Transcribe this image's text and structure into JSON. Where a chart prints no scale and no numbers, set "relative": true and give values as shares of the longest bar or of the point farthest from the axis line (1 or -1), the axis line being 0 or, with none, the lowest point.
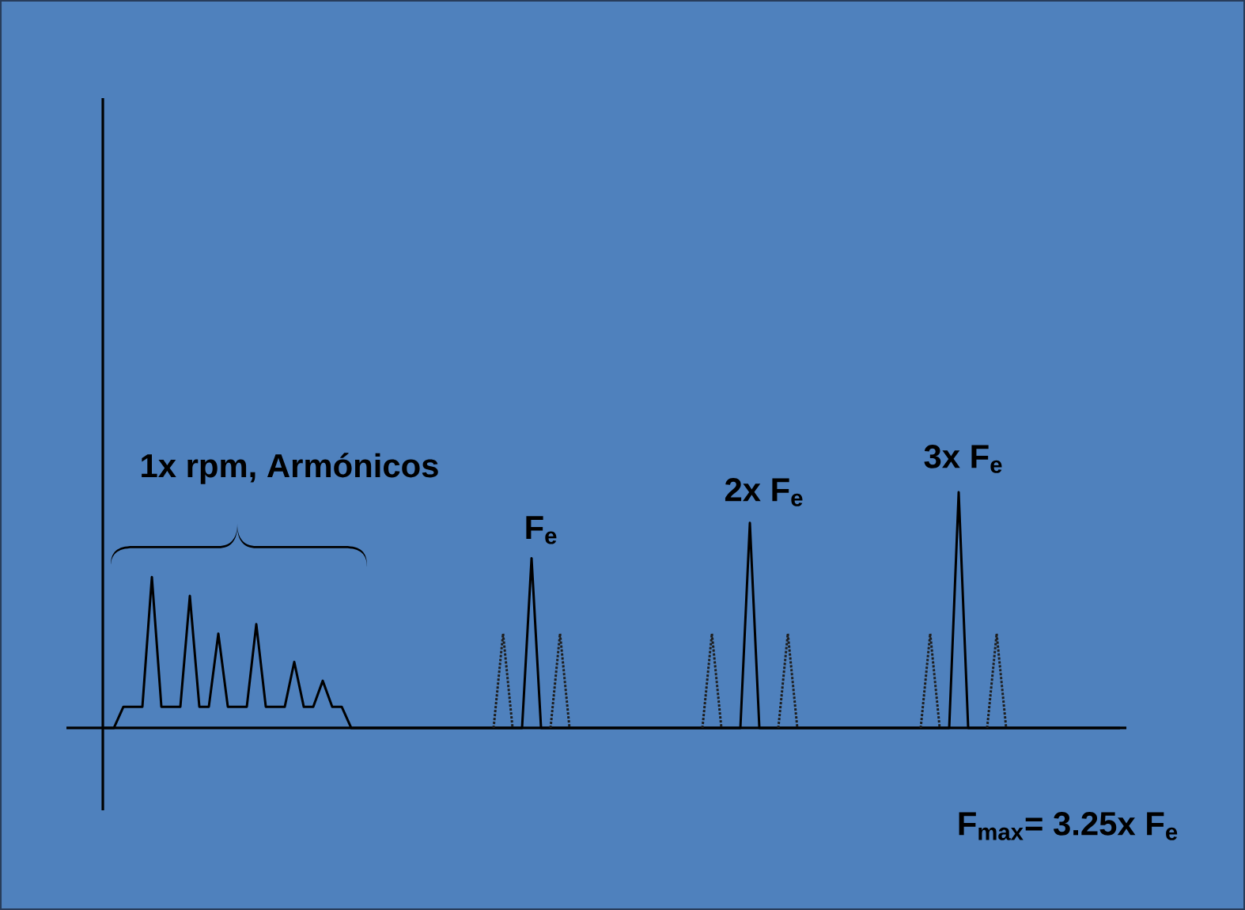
{
  "chart_data": {
    "type": "line",
    "relative": true,
    "categories": [
      null,
      null,
      null,
      null,
      null,
      null,
      null,
      null,
      null,
      null,
      null,
      null,
      null,
      null,
      null,
      null,
      null,
      null,
      null,
      null,
      null,
      null,
      null,
      null,
      null,
      null,
      null,
      null,
      null,
      null,
      null,
      null,
      null,
      null,
      null,
      null,
      null,
      null,
      null,
      null,
      null,
      null,
      null,
      null,
      null,
      null,
      null,
      null,
      null,
      null,
      null,
      null,
      null,
      null,
      null,
      null,
      null,
      null,
      null,
      null,
      null,
      null,
      null,
      null,
      null,
      null,
      null,
      null,
      null,
      null,
      null,
      null,
      null,
      null,
      null,
      null,
      null,
      null,
      null,
      null,
      null,
      null,
      null,
      null,
      null,
      null,
      null,
      null,
      null,
      null,
      null,
      null,
      null,
      null,
      null,
      null,
      null,
      null,
      null,
      null,
      null,
      null,
      null,
      null,
      null,
      null,
      null,
      null
    ],
    "series": [
      {
        "color": "#000000",
        "line_style": "solid",
        "values": [
          0,
          0,
          0.09,
          0.09,
          0.09,
          0.64,
          0.09,
          0.09,
          0.09,
          0.56,
          0.09,
          0.09,
          0.4,
          0.09,
          0.09,
          0.09,
          0.44,
          0.09,
          0.09,
          0.09,
          0.28,
          0.09,
          0.09,
          0.2,
          0.09,
          0.09,
          0,
          0,
          0,
          0,
          0,
          0,
          0,
          0,
          0,
          0,
          0,
          0,
          0,
          0,
          0,
          0,
          0,
          0,
          0,
          0.72,
          0,
          0,
          0,
          0,
          0,
          0,
          0,
          0,
          0,
          0,
          0,
          0,
          0,
          0,
          0,
          0,
          0,
          0,
          0,
          0,
          0,
          0,
          0.87,
          0,
          0,
          0,
          0,
          0,
          0,
          0,
          0,
          0,
          0,
          0,
          0,
          0,
          0,
          0,
          0,
          0,
          0,
          0,
          0,
          0,
          1,
          0,
          0,
          0,
          0,
          0,
          0,
          0,
          0,
          0,
          0,
          0,
          0,
          0,
          0,
          0,
          0,
          0
        ]
      },
      {
        "color": "#1e1e1e",
        "line_style": "dotted",
        "values": [
          null,
          null,
          null,
          null,
          null,
          null,
          null,
          null,
          null,
          null,
          null,
          null,
          null,
          null,
          null,
          null,
          null,
          null,
          null,
          null,
          null,
          null,
          null,
          null,
          null,
          null,
          null,
          null,
          null,
          null,
          null,
          null,
          null,
          null,
          null,
          null,
          null,
          null,
          null,
          null,
          null,
          0,
          0.4,
          0,
          null,
          null,
          null,
          0,
          0.4,
          0,
          null,
          null,
          null,
          null,
          null,
          null,
          null,
          null,
          null,
          null,
          null,
          null,
          null,
          0,
          0.4,
          0,
          null,
          null,
          null,
          null,
          null,
          0,
          0.4,
          0,
          null,
          null,
          null,
          null,
          null,
          null,
          null,
          null,
          null,
          null,
          null,
          null,
          0,
          0.4,
          0,
          null,
          null,
          null,
          null,
          0,
          0.4,
          0,
          null,
          null,
          null,
          null,
          null,
          null,
          null,
          null,
          null,
          null,
          null,
          null
        ]
      }
    ],
    "annotations": [
      "1x rpm, Armónicos",
      "F$_{e}$",
      "2x F$_{e}$",
      "3x F$_{e}$",
      "F$_{max}$= 3.25x F$_{e}$"
    ]
  }
}
